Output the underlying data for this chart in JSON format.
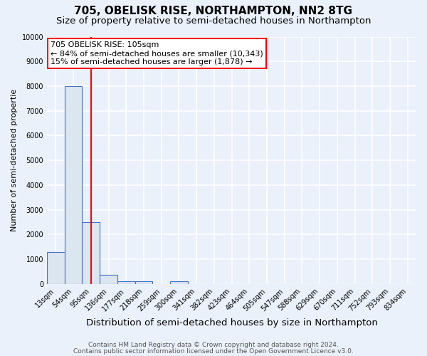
{
  "title": "705, OBELISK RISE, NORTHAMPTON, NN2 8TG",
  "subtitle": "Size of property relative to semi-detached houses in Northampton",
  "xlabel": "Distribution of semi-detached houses by size in Northampton",
  "ylabel": "Number of semi-detached propertie",
  "footnote1": "Contains HM Land Registry data © Crown copyright and database right 2024.",
  "footnote2": "Contains public sector information licensed under the Open Government Licence v3.0.",
  "bin_labels": [
    "13sqm",
    "54sqm",
    "95sqm",
    "136sqm",
    "177sqm",
    "218sqm",
    "259sqm",
    "300sqm",
    "341sqm",
    "382sqm",
    "423sqm",
    "464sqm",
    "505sqm",
    "547sqm",
    "588sqm",
    "629sqm",
    "670sqm",
    "711sqm",
    "752sqm",
    "793sqm",
    "834sqm"
  ],
  "bar_values": [
    1300,
    8000,
    2500,
    380,
    120,
    100,
    0,
    100,
    0,
    0,
    0,
    0,
    0,
    0,
    0,
    0,
    0,
    0,
    0,
    0,
    0
  ],
  "bar_color": "#dce6f1",
  "bar_edge_color": "#4472c4",
  "vline_x": 2,
  "vline_color": "red",
  "annotation_line1": "705 OBELISK RISE: 105sqm",
  "annotation_line2": "← 84% of semi-detached houses are smaller (10,343)",
  "annotation_line3": "15% of semi-detached houses are larger (1,878) →",
  "annotation_box_color": "white",
  "annotation_box_edge": "red",
  "ylim": [
    0,
    10000
  ],
  "yticks": [
    0,
    1000,
    2000,
    3000,
    4000,
    5000,
    6000,
    7000,
    8000,
    9000,
    10000
  ],
  "bg_color": "#eaf1fb",
  "plot_bg_color": "#eaf1fb",
  "grid_color": "white",
  "title_fontsize": 11,
  "subtitle_fontsize": 9.5,
  "xlabel_fontsize": 9.5,
  "ylabel_fontsize": 8,
  "tick_fontsize": 7,
  "annotation_fontsize": 8,
  "footnote_fontsize": 6.5
}
